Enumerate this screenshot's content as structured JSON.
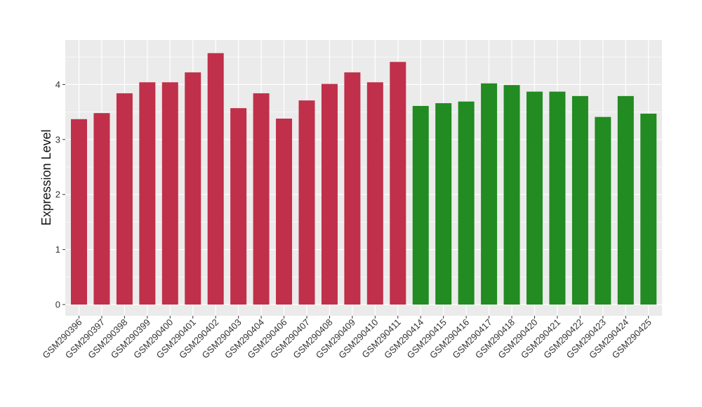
{
  "chart_data": {
    "type": "bar",
    "title": "",
    "xlabel": "",
    "ylabel": "Expression Level",
    "ylim": [
      -0.2,
      4.7
    ],
    "yticks": [
      0,
      1,
      2,
      3,
      4
    ],
    "grid": true,
    "legend": "none",
    "colors": {
      "group_1": "#c0304a",
      "group_2": "#228b22",
      "panel_bg": "#ebebeb",
      "grid": "#ffffff"
    },
    "categories": [
      "GSM290396",
      "GSM290397",
      "GSM290398",
      "GSM290399",
      "GSM290400",
      "GSM290401",
      "GSM290402",
      "GSM290403",
      "GSM290404",
      "GSM290406",
      "GSM290407",
      "GSM290408",
      "GSM290409",
      "GSM290410",
      "GSM290411",
      "GSM290414",
      "GSM290415",
      "GSM290416",
      "GSM290417",
      "GSM290418",
      "GSM290420",
      "GSM290421",
      "GSM290422",
      "GSM290423",
      "GSM290424",
      "GSM290425"
    ],
    "values": [
      3.37,
      3.48,
      3.84,
      4.04,
      4.04,
      4.22,
      4.57,
      3.57,
      3.84,
      3.38,
      3.71,
      4.01,
      4.22,
      4.04,
      4.41,
      3.61,
      3.66,
      3.69,
      4.02,
      3.99,
      3.87,
      3.87,
      3.79,
      3.41,
      3.79,
      3.47
    ],
    "groups": [
      1,
      1,
      1,
      1,
      1,
      1,
      1,
      1,
      1,
      1,
      1,
      1,
      1,
      1,
      1,
      2,
      2,
      2,
      2,
      2,
      2,
      2,
      2,
      2,
      2,
      2
    ]
  }
}
